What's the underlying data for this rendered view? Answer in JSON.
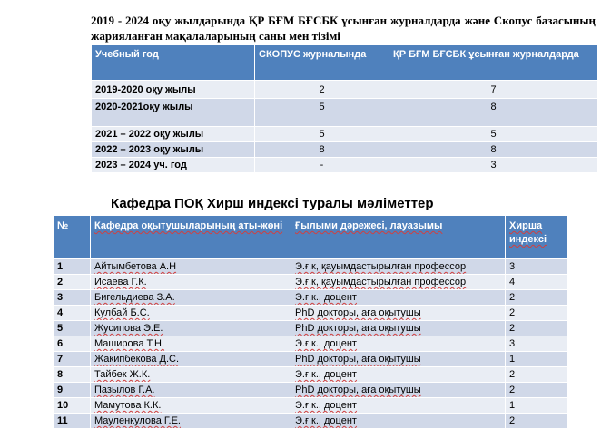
{
  "title1": "2019 - 2024 оқу жылдарында ҚР БҒМ БҒСБК ұсынған журналдарда және Скопус базасының жарияланған мақалаларының саны мен тізімі",
  "table1": {
    "headers": [
      "Учебный год",
      "СКОПУС журналында",
      "ҚР БҒМ БҒСБК ұсынған журналдарда"
    ],
    "rows": [
      [
        "2019-2020  оқу жылы",
        "2",
        "7"
      ],
      [
        "2020-2021оқу жылы",
        "5",
        "8"
      ],
      [
        "2021 – 2022 оқу жылы",
        "5",
        "5"
      ],
      [
        "2022 – 2023 оқу жылы",
        "8",
        "8"
      ],
      [
        "2023 – 2024 уч. год",
        "-",
        "3"
      ]
    ]
  },
  "title2": "Кафедра ПОҚ Хирш индексі туралы мәліметтер",
  "table2": {
    "headers": [
      "№",
      "Кафедра оқытушыларының аты-жөні",
      "Ғылыми дәрежесі, лауазымы",
      "Хирша индексі"
    ],
    "rows": [
      [
        "1",
        "Айтымбетова А.Н",
        "Э.ғ.к, қауымдастырылған профессор",
        "3"
      ],
      [
        "2",
        "Исаева Г.К.",
        "Э.ғ.к, қауымдастырылған профессор",
        "4"
      ],
      [
        "3",
        "Бигельдиева З.А.",
        "Э.ғ.к., доцент",
        "2"
      ],
      [
        "4",
        "Кулбай Б.С.",
        "PhD докторы, аға оқытушы",
        "2"
      ],
      [
        "5",
        "Жусипова Э.Е.",
        "PhD докторы, аға оқытушы",
        "2"
      ],
      [
        "6",
        "Маширова Т.Н.",
        "Э.ғ.к.,  доцент",
        "3"
      ],
      [
        "7",
        "Жакипбекова Д.С.",
        "PhD докторы, аға оқытушы",
        "1"
      ],
      [
        "8",
        "Тайбек Ж.К.",
        "Э.ғ.к., доцент",
        "2"
      ],
      [
        "9",
        "Пазылов Г.А.",
        "PhD докторы, аға оқытушы",
        "2"
      ],
      [
        "10",
        "Мамутова К.К.",
        "Э.ғ.к., доцент",
        "1"
      ],
      [
        "11",
        "Мауленкулова Г.Е.",
        "Э.ғ.к., доцент",
        "2"
      ]
    ]
  }
}
